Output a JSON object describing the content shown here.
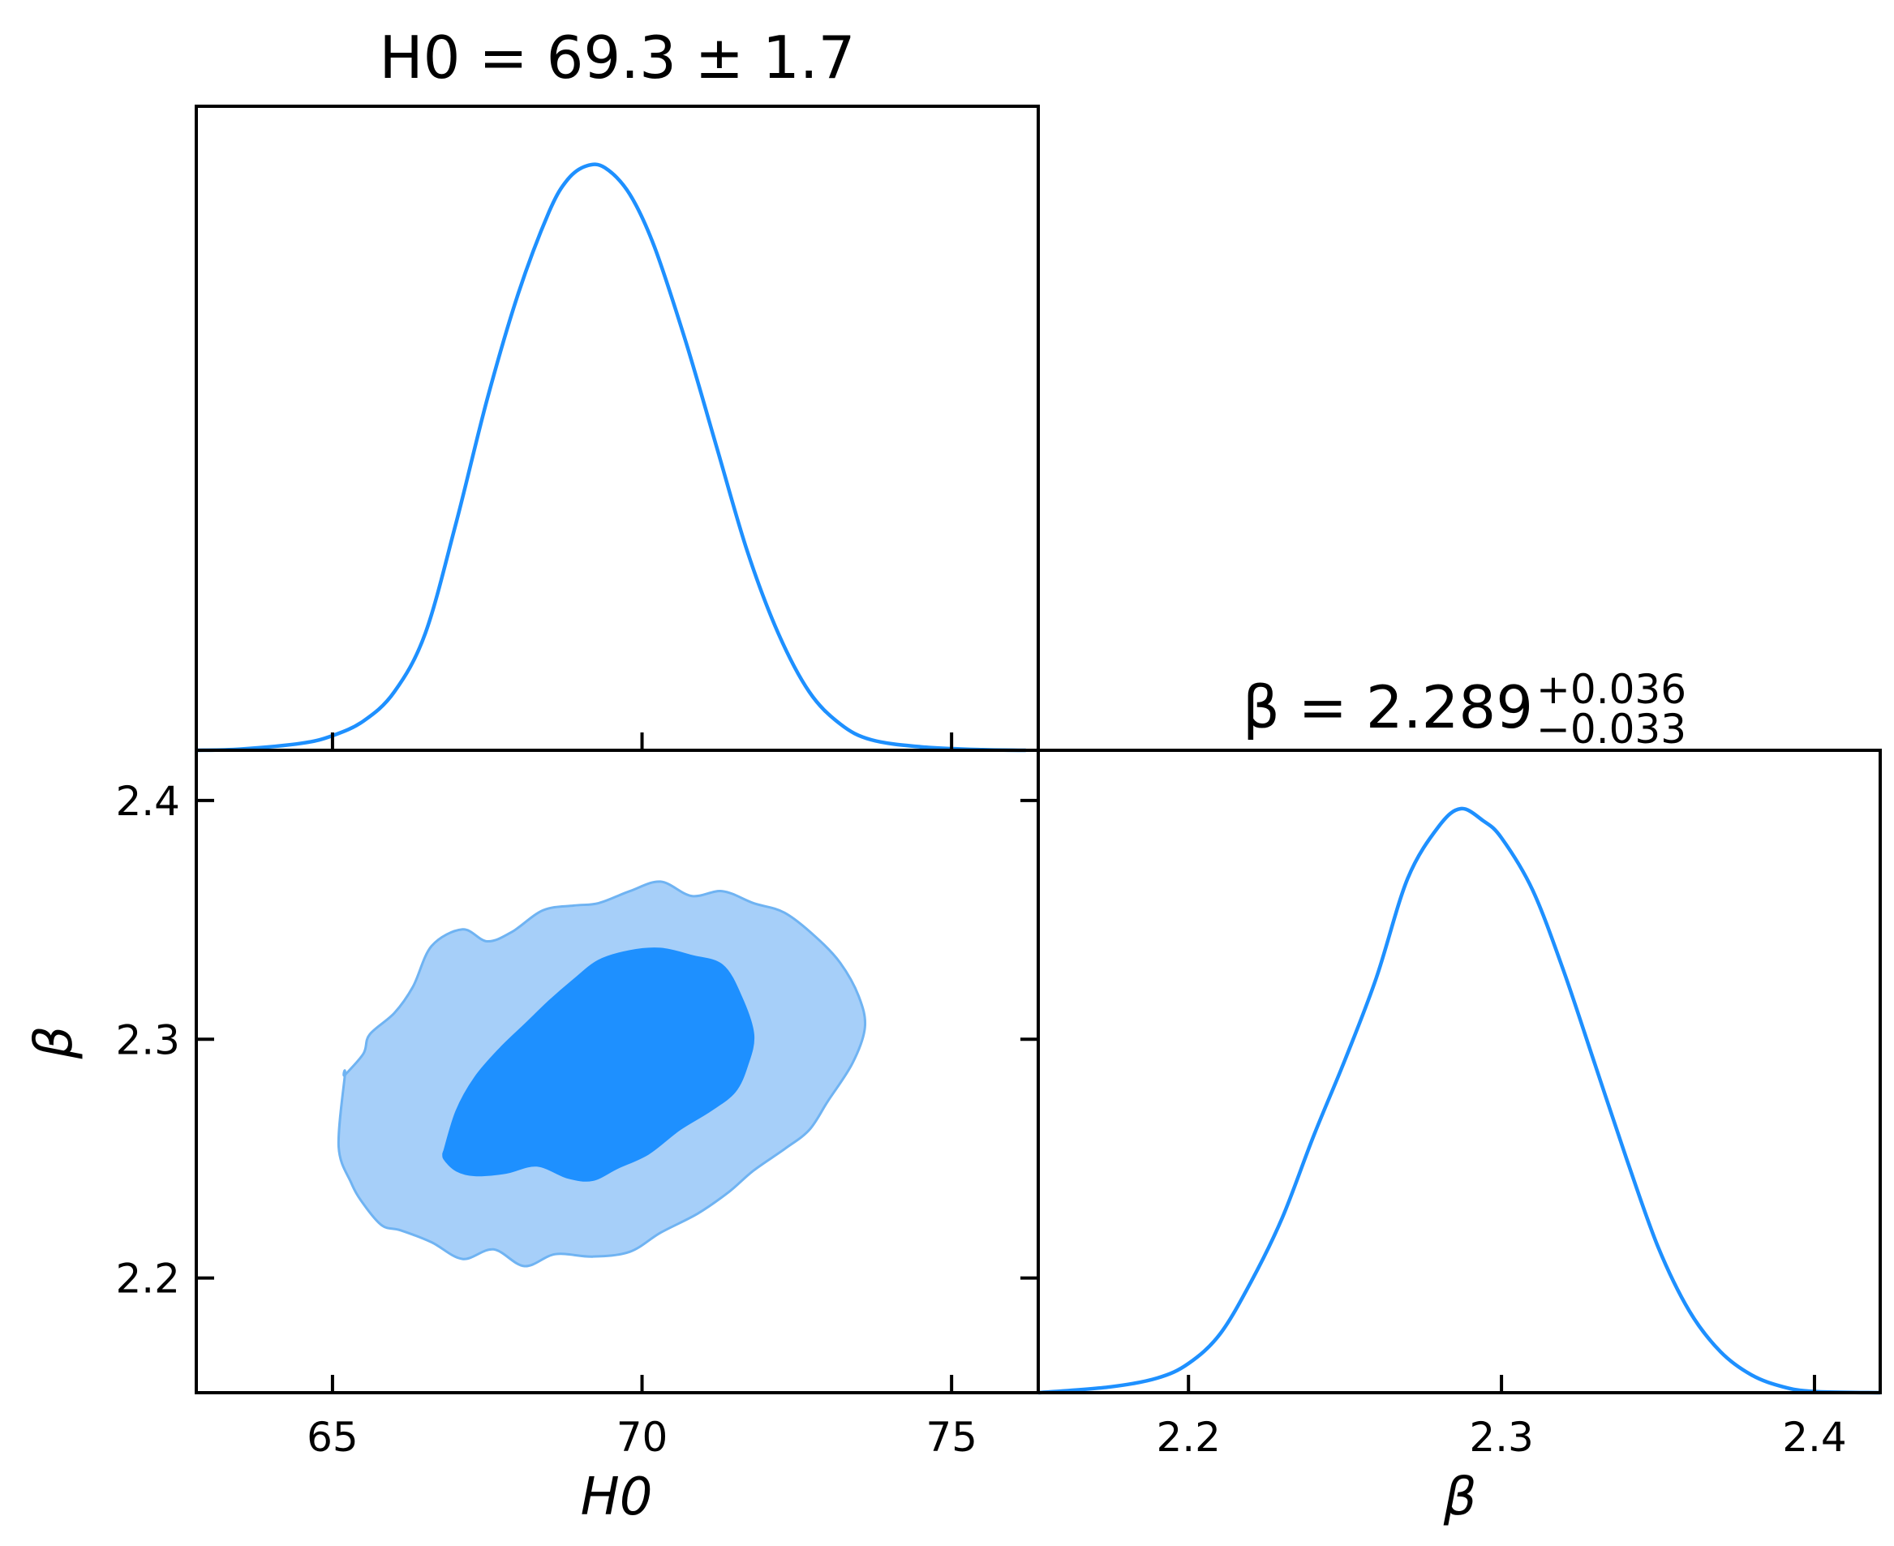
{
  "colors": {
    "accent": "#1e90ff",
    "outer_contour": "#a6cff9",
    "outer_edge": "#6fb3f2"
  },
  "chart_data": [
    {
      "type": "line",
      "panel": "H0 marginal",
      "title": {
        "main": "H0 = 69.3 ± 1.7"
      },
      "x": [
        62.8,
        63.5,
        64.5,
        65.0,
        65.5,
        66.0,
        66.5,
        67.0,
        67.5,
        68.0,
        68.5,
        68.8,
        69.1,
        69.4,
        69.8,
        70.2,
        70.7,
        71.2,
        71.7,
        72.2,
        72.7,
        73.2,
        73.7,
        74.5,
        75.5,
        76.2
      ],
      "y": [
        0.0,
        0.002,
        0.012,
        0.025,
        0.05,
        0.1,
        0.2,
        0.39,
        0.6,
        0.78,
        0.92,
        0.975,
        0.998,
        0.995,
        0.95,
        0.86,
        0.7,
        0.52,
        0.34,
        0.2,
        0.1,
        0.045,
        0.018,
        0.006,
        0.001,
        0.0
      ],
      "xlim": [
        62.8,
        76.4
      ],
      "ylim": [
        0,
        1.1
      ]
    },
    {
      "type": "contour",
      "panel": "H0 vs beta",
      "xlabel": "H0",
      "ylabel": "β",
      "xticks": [
        "65",
        "70",
        "75"
      ],
      "yticks": [
        "2.2",
        "2.3",
        "2.4"
      ],
      "xlim": [
        62.8,
        76.4
      ],
      "ylim": [
        2.152,
        2.421
      ],
      "contours": [
        {
          "level": "outer",
          "x": [
            65.2,
            65.5,
            65.6,
            66.0,
            66.3,
            66.6,
            67.1,
            67.5,
            67.9,
            68.4,
            68.9,
            69.3,
            69.8,
            70.3,
            70.8,
            71.3,
            71.8,
            72.3,
            72.8,
            73.2,
            73.5,
            73.6,
            73.4,
            73.0,
            72.7,
            72.3,
            71.8,
            71.4,
            70.9,
            70.3,
            69.8,
            69.2,
            68.6,
            68.1,
            67.6,
            67.1,
            66.6,
            66.1,
            65.8,
            65.5,
            65.3,
            65.1,
            65.2
          ],
          "y": [
            2.285,
            2.294,
            2.302,
            2.311,
            2.322,
            2.339,
            2.346,
            2.341,
            2.345,
            2.354,
            2.356,
            2.357,
            2.362,
            2.366,
            2.36,
            2.362,
            2.357,
            2.353,
            2.343,
            2.332,
            2.318,
            2.305,
            2.29,
            2.274,
            2.262,
            2.254,
            2.245,
            2.236,
            2.227,
            2.219,
            2.211,
            2.209,
            2.21,
            2.205,
            2.212,
            2.208,
            2.215,
            2.22,
            2.222,
            2.231,
            2.24,
            2.255,
            2.285
          ]
        },
        {
          "level": "inner",
          "x": [
            66.8,
            67.0,
            67.3,
            67.7,
            68.1,
            68.5,
            68.9,
            69.3,
            69.8,
            70.3,
            70.8,
            71.3,
            71.6,
            71.8,
            71.7,
            71.5,
            71.1,
            70.6,
            70.1,
            69.6,
            69.2,
            68.8,
            68.3,
            67.8,
            67.3,
            67.0,
            66.8,
            66.8
          ],
          "y": [
            2.253,
            2.27,
            2.284,
            2.296,
            2.306,
            2.316,
            2.325,
            2.333,
            2.337,
            2.338,
            2.335,
            2.331,
            2.318,
            2.302,
            2.289,
            2.278,
            2.27,
            2.262,
            2.252,
            2.246,
            2.241,
            2.242,
            2.247,
            2.244,
            2.243,
            2.245,
            2.25,
            2.253
          ]
        }
      ]
    },
    {
      "type": "line",
      "panel": "beta marginal",
      "title": {
        "main": "β = 2.289",
        "superscript": "+0.036",
        "subscript": "−0.033"
      },
      "xlabel": "β",
      "xticks": [
        "2.2",
        "2.3",
        "2.4"
      ],
      "x": [
        2.152,
        2.175,
        2.19,
        2.2,
        2.21,
        2.22,
        2.23,
        2.24,
        2.25,
        2.26,
        2.27,
        2.28,
        2.287,
        2.294,
        2.3,
        2.31,
        2.32,
        2.33,
        2.34,
        2.35,
        2.36,
        2.37,
        2.38,
        2.39,
        2.4,
        2.421
      ],
      "y": [
        0.0,
        0.01,
        0.025,
        0.05,
        0.1,
        0.19,
        0.3,
        0.44,
        0.57,
        0.71,
        0.88,
        0.97,
        1.0,
        0.98,
        0.95,
        0.86,
        0.72,
        0.56,
        0.4,
        0.25,
        0.14,
        0.07,
        0.03,
        0.01,
        0.002,
        0.0
      ],
      "xlim": [
        2.152,
        2.421
      ],
      "ylim": [
        0,
        1.1
      ]
    }
  ]
}
